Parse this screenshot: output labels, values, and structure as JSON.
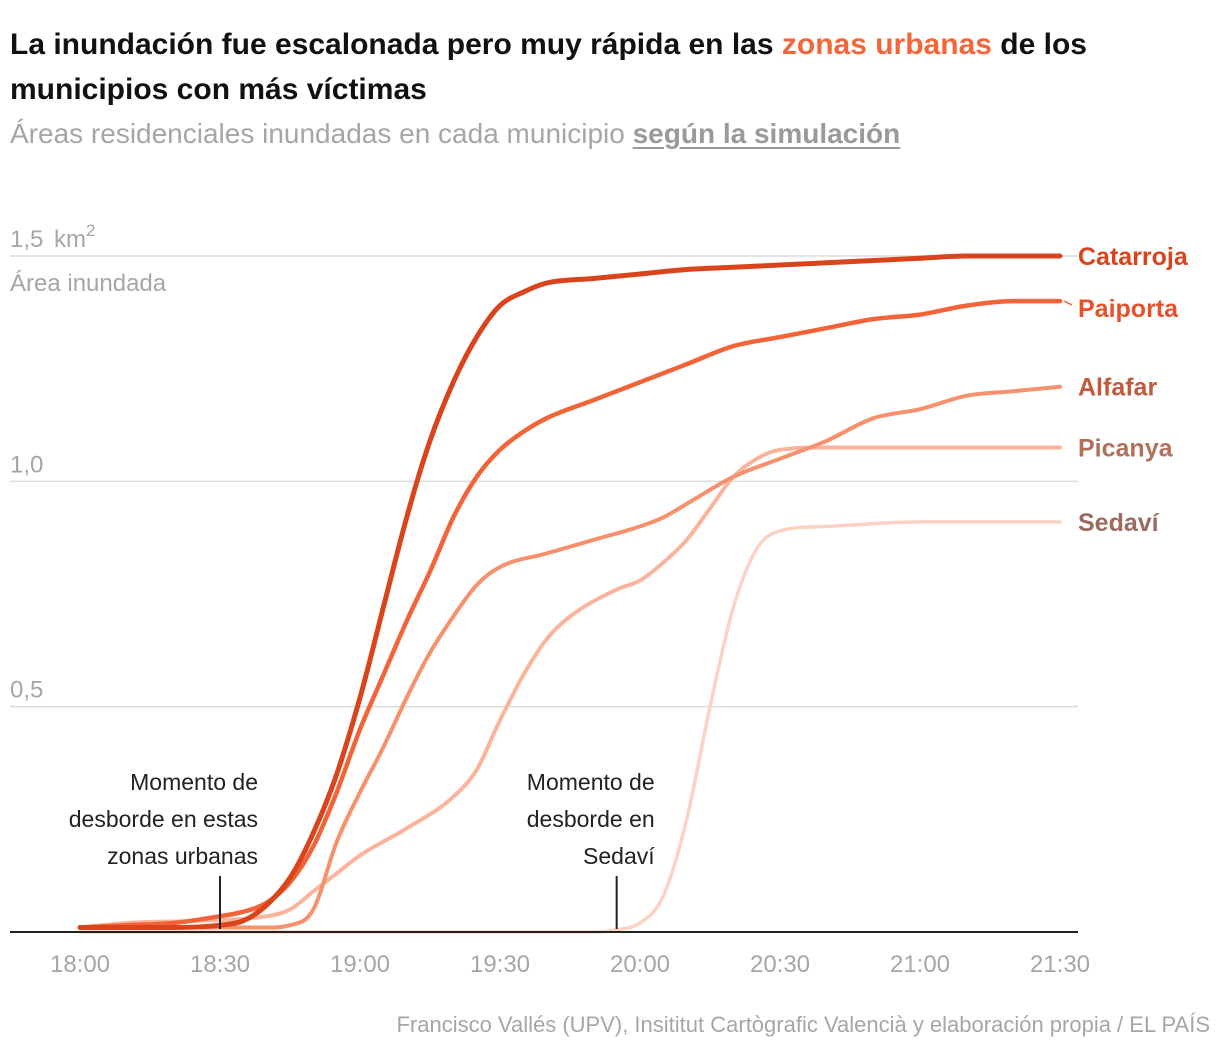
{
  "header": {
    "title_before": "La inundación fue escalonada pero muy rápida en las ",
    "title_highlight": "zonas urbanas",
    "title_after": " de los municipios con más víctimas",
    "subtitle_text": "Áreas residenciales inundadas en cada municipio ",
    "subtitle_link": "según la simulación",
    "highlight_color": "#f2663a"
  },
  "footer": {
    "source": "Francisco Vallés (UPV), Insititut Cartògrafic Valencià y elaboración propia / EL PAÍS"
  },
  "chart_data": {
    "type": "line",
    "title": "La inundación fue escalonada pero muy rápida en las zonas urbanas de los municipios con más víctimas",
    "subtitle": "Áreas residenciales inundadas en cada municipio según la simulación",
    "ylabel": "Área inundada",
    "y_unit": "km²",
    "ylim": [
      0,
      1.5
    ],
    "y_ticks": [
      {
        "value": 1.5,
        "label": "1,5"
      },
      {
        "value": 1.0,
        "label": "1,0"
      },
      {
        "value": 0.5,
        "label": "0,5"
      }
    ],
    "x_ticks": [
      "18:00",
      "18:30",
      "19:00",
      "19:30",
      "20:00",
      "20:30",
      "21:00",
      "21:30"
    ],
    "xlim": [
      "18:00",
      "21:30"
    ],
    "grid": "horizontal",
    "legend": "direct labels at right end of lines",
    "series": [
      {
        "name": "Sedaví",
        "color": "#fbd2c3",
        "label_color": "#9b6b5f",
        "width": 3.5,
        "points": [
          [
            "18:00",
            0.0
          ],
          [
            "19:00",
            0.0
          ],
          [
            "19:30",
            0.0
          ],
          [
            "19:50",
            0.0
          ],
          [
            "19:55",
            0.005
          ],
          [
            "20:00",
            0.02
          ],
          [
            "20:05",
            0.08
          ],
          [
            "20:10",
            0.25
          ],
          [
            "20:15",
            0.5
          ],
          [
            "20:20",
            0.72
          ],
          [
            "20:25",
            0.85
          ],
          [
            "20:30",
            0.89
          ],
          [
            "20:40",
            0.9
          ],
          [
            "21:00",
            0.91
          ],
          [
            "21:30",
            0.91
          ]
        ]
      },
      {
        "name": "Picanya",
        "color": "#fbb39b",
        "label_color": "#b0705c",
        "width": 4,
        "points": [
          [
            "18:00",
            0.01
          ],
          [
            "18:10",
            0.02
          ],
          [
            "18:25",
            0.025
          ],
          [
            "18:40",
            0.035
          ],
          [
            "18:45",
            0.05
          ],
          [
            "18:50",
            0.09
          ],
          [
            "18:55",
            0.13
          ],
          [
            "19:00",
            0.17
          ],
          [
            "19:10",
            0.23
          ],
          [
            "19:20",
            0.3
          ],
          [
            "19:25",
            0.36
          ],
          [
            "19:30",
            0.47
          ],
          [
            "19:35",
            0.57
          ],
          [
            "19:40",
            0.65
          ],
          [
            "19:45",
            0.7
          ],
          [
            "19:55",
            0.76
          ],
          [
            "20:00",
            0.78
          ],
          [
            "20:05",
            0.82
          ],
          [
            "20:10",
            0.87
          ],
          [
            "20:15",
            0.94
          ],
          [
            "20:20",
            1.01
          ],
          [
            "20:25",
            1.05
          ],
          [
            "20:30",
            1.07
          ],
          [
            "20:40",
            1.075
          ],
          [
            "21:00",
            1.075
          ],
          [
            "21:30",
            1.075
          ]
        ]
      },
      {
        "name": "Alfafar",
        "color": "#f7906d",
        "label_color": "#c25a3c",
        "width": 4,
        "points": [
          [
            "18:00",
            0.01
          ],
          [
            "18:30",
            0.01
          ],
          [
            "18:40",
            0.01
          ],
          [
            "18:45",
            0.015
          ],
          [
            "18:50",
            0.05
          ],
          [
            "18:55",
            0.2
          ],
          [
            "19:00",
            0.31
          ],
          [
            "19:05",
            0.41
          ],
          [
            "19:10",
            0.52
          ],
          [
            "19:15",
            0.62
          ],
          [
            "19:20",
            0.7
          ],
          [
            "19:25",
            0.77
          ],
          [
            "19:30",
            0.81
          ],
          [
            "19:40",
            0.84
          ],
          [
            "19:50",
            0.87
          ],
          [
            "20:00",
            0.9
          ],
          [
            "20:05",
            0.92
          ],
          [
            "20:10",
            0.95
          ],
          [
            "20:20",
            1.01
          ],
          [
            "20:30",
            1.05
          ],
          [
            "20:40",
            1.09
          ],
          [
            "20:50",
            1.14
          ],
          [
            "21:00",
            1.16
          ],
          [
            "21:10",
            1.19
          ],
          [
            "21:20",
            1.2
          ],
          [
            "21:30",
            1.21
          ]
        ]
      },
      {
        "name": "Paiporta",
        "color": "#f26438",
        "label_color": "#e4512a",
        "width": 4.5,
        "points": [
          [
            "18:00",
            0.01
          ],
          [
            "18:10",
            0.015
          ],
          [
            "18:20",
            0.02
          ],
          [
            "18:30",
            0.035
          ],
          [
            "18:35",
            0.045
          ],
          [
            "18:40",
            0.065
          ],
          [
            "18:45",
            0.11
          ],
          [
            "18:50",
            0.19
          ],
          [
            "18:55",
            0.31
          ],
          [
            "19:00",
            0.45
          ],
          [
            "19:05",
            0.57
          ],
          [
            "19:10",
            0.69
          ],
          [
            "19:15",
            0.8
          ],
          [
            "19:20",
            0.92
          ],
          [
            "19:25",
            1.01
          ],
          [
            "19:30",
            1.07
          ],
          [
            "19:35",
            1.11
          ],
          [
            "19:40",
            1.14
          ],
          [
            "19:50",
            1.18
          ],
          [
            "20:00",
            1.22
          ],
          [
            "20:10",
            1.26
          ],
          [
            "20:20",
            1.3
          ],
          [
            "20:30",
            1.32
          ],
          [
            "20:40",
            1.34
          ],
          [
            "20:50",
            1.36
          ],
          [
            "21:00",
            1.37
          ],
          [
            "21:10",
            1.39
          ],
          [
            "21:20",
            1.4
          ],
          [
            "21:30",
            1.4
          ]
        ]
      },
      {
        "name": "Catarroja",
        "color": "#d9441c",
        "label_color": "#d9441c",
        "width": 5,
        "points": [
          [
            "18:00",
            0.01
          ],
          [
            "18:20",
            0.01
          ],
          [
            "18:30",
            0.015
          ],
          [
            "18:35",
            0.025
          ],
          [
            "18:40",
            0.06
          ],
          [
            "18:45",
            0.12
          ],
          [
            "18:50",
            0.22
          ],
          [
            "18:55",
            0.35
          ],
          [
            "19:00",
            0.52
          ],
          [
            "19:05",
            0.72
          ],
          [
            "19:10",
            0.92
          ],
          [
            "19:15",
            1.09
          ],
          [
            "19:20",
            1.22
          ],
          [
            "19:25",
            1.32
          ],
          [
            "19:30",
            1.39
          ],
          [
            "19:35",
            1.42
          ],
          [
            "19:40",
            1.44
          ],
          [
            "19:50",
            1.45
          ],
          [
            "20:00",
            1.46
          ],
          [
            "20:10",
            1.47
          ],
          [
            "20:20",
            1.475
          ],
          [
            "20:30",
            1.48
          ],
          [
            "20:40",
            1.485
          ],
          [
            "20:50",
            1.49
          ],
          [
            "21:00",
            1.495
          ],
          [
            "21:10",
            1.5
          ],
          [
            "21:20",
            1.5
          ],
          [
            "21:30",
            1.5
          ]
        ]
      }
    ],
    "annotations": [
      {
        "x": "18:30",
        "lines": [
          "Momento de",
          "desborde en estas",
          "zonas urbanas"
        ]
      },
      {
        "x": "19:55",
        "lines": [
          "Momento de",
          "desborde en",
          "Sedaví"
        ]
      }
    ]
  }
}
